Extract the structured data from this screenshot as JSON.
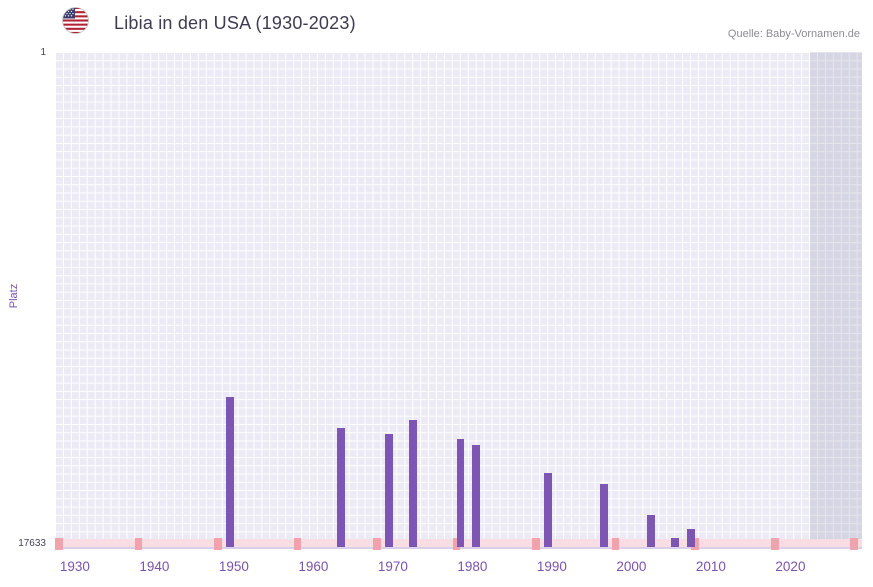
{
  "header": {
    "title": "Libia in den USA (1930-2023)",
    "source": "Quelle: Baby-Vornamen.de"
  },
  "chart_data": {
    "type": "bar",
    "title": "Libia in den USA (1930-2023)",
    "xlabel": "",
    "ylabel": "Platz",
    "y_axis": {
      "top_label": "1",
      "bottom_label": "17633",
      "min": 1,
      "max": 17633,
      "inverted": true
    },
    "x_domain": [
      1927.5,
      2029
    ],
    "x_ticks": [
      1930,
      1940,
      1950,
      1960,
      1970,
      1980,
      1990,
      2000,
      2010,
      2020
    ],
    "bars": [
      {
        "year": 1949,
        "rank": 12300
      },
      {
        "year": 1963,
        "rank": 13400
      },
      {
        "year": 1969,
        "rank": 13600
      },
      {
        "year": 1972,
        "rank": 13100
      },
      {
        "year": 1978,
        "rank": 13800
      },
      {
        "year": 1980,
        "rank": 14000
      },
      {
        "year": 1989,
        "rank": 15000
      },
      {
        "year": 1996,
        "rank": 15400
      },
      {
        "year": 2002,
        "rank": 16500
      },
      {
        "year": 2005,
        "rank": 17300
      },
      {
        "year": 2007,
        "rank": 17000
      }
    ],
    "future_band_start": 2022.5,
    "no_data_strip": {
      "tick_start": 1927.5,
      "tick_step": 10
    },
    "grid": true,
    "colors": {
      "bar": "#7d55b2",
      "plot_bg": "#ebeaf5",
      "grid": "#ffffff",
      "future_band": "rgba(150,150,178,0.25)",
      "strip": "#f9dde2",
      "strip_tick": "#f0a3ac",
      "tick_label": "#7b52ae",
      "axis_text": "#45455a",
      "title": "#3d3c52",
      "source": "#8c8c94"
    }
  }
}
